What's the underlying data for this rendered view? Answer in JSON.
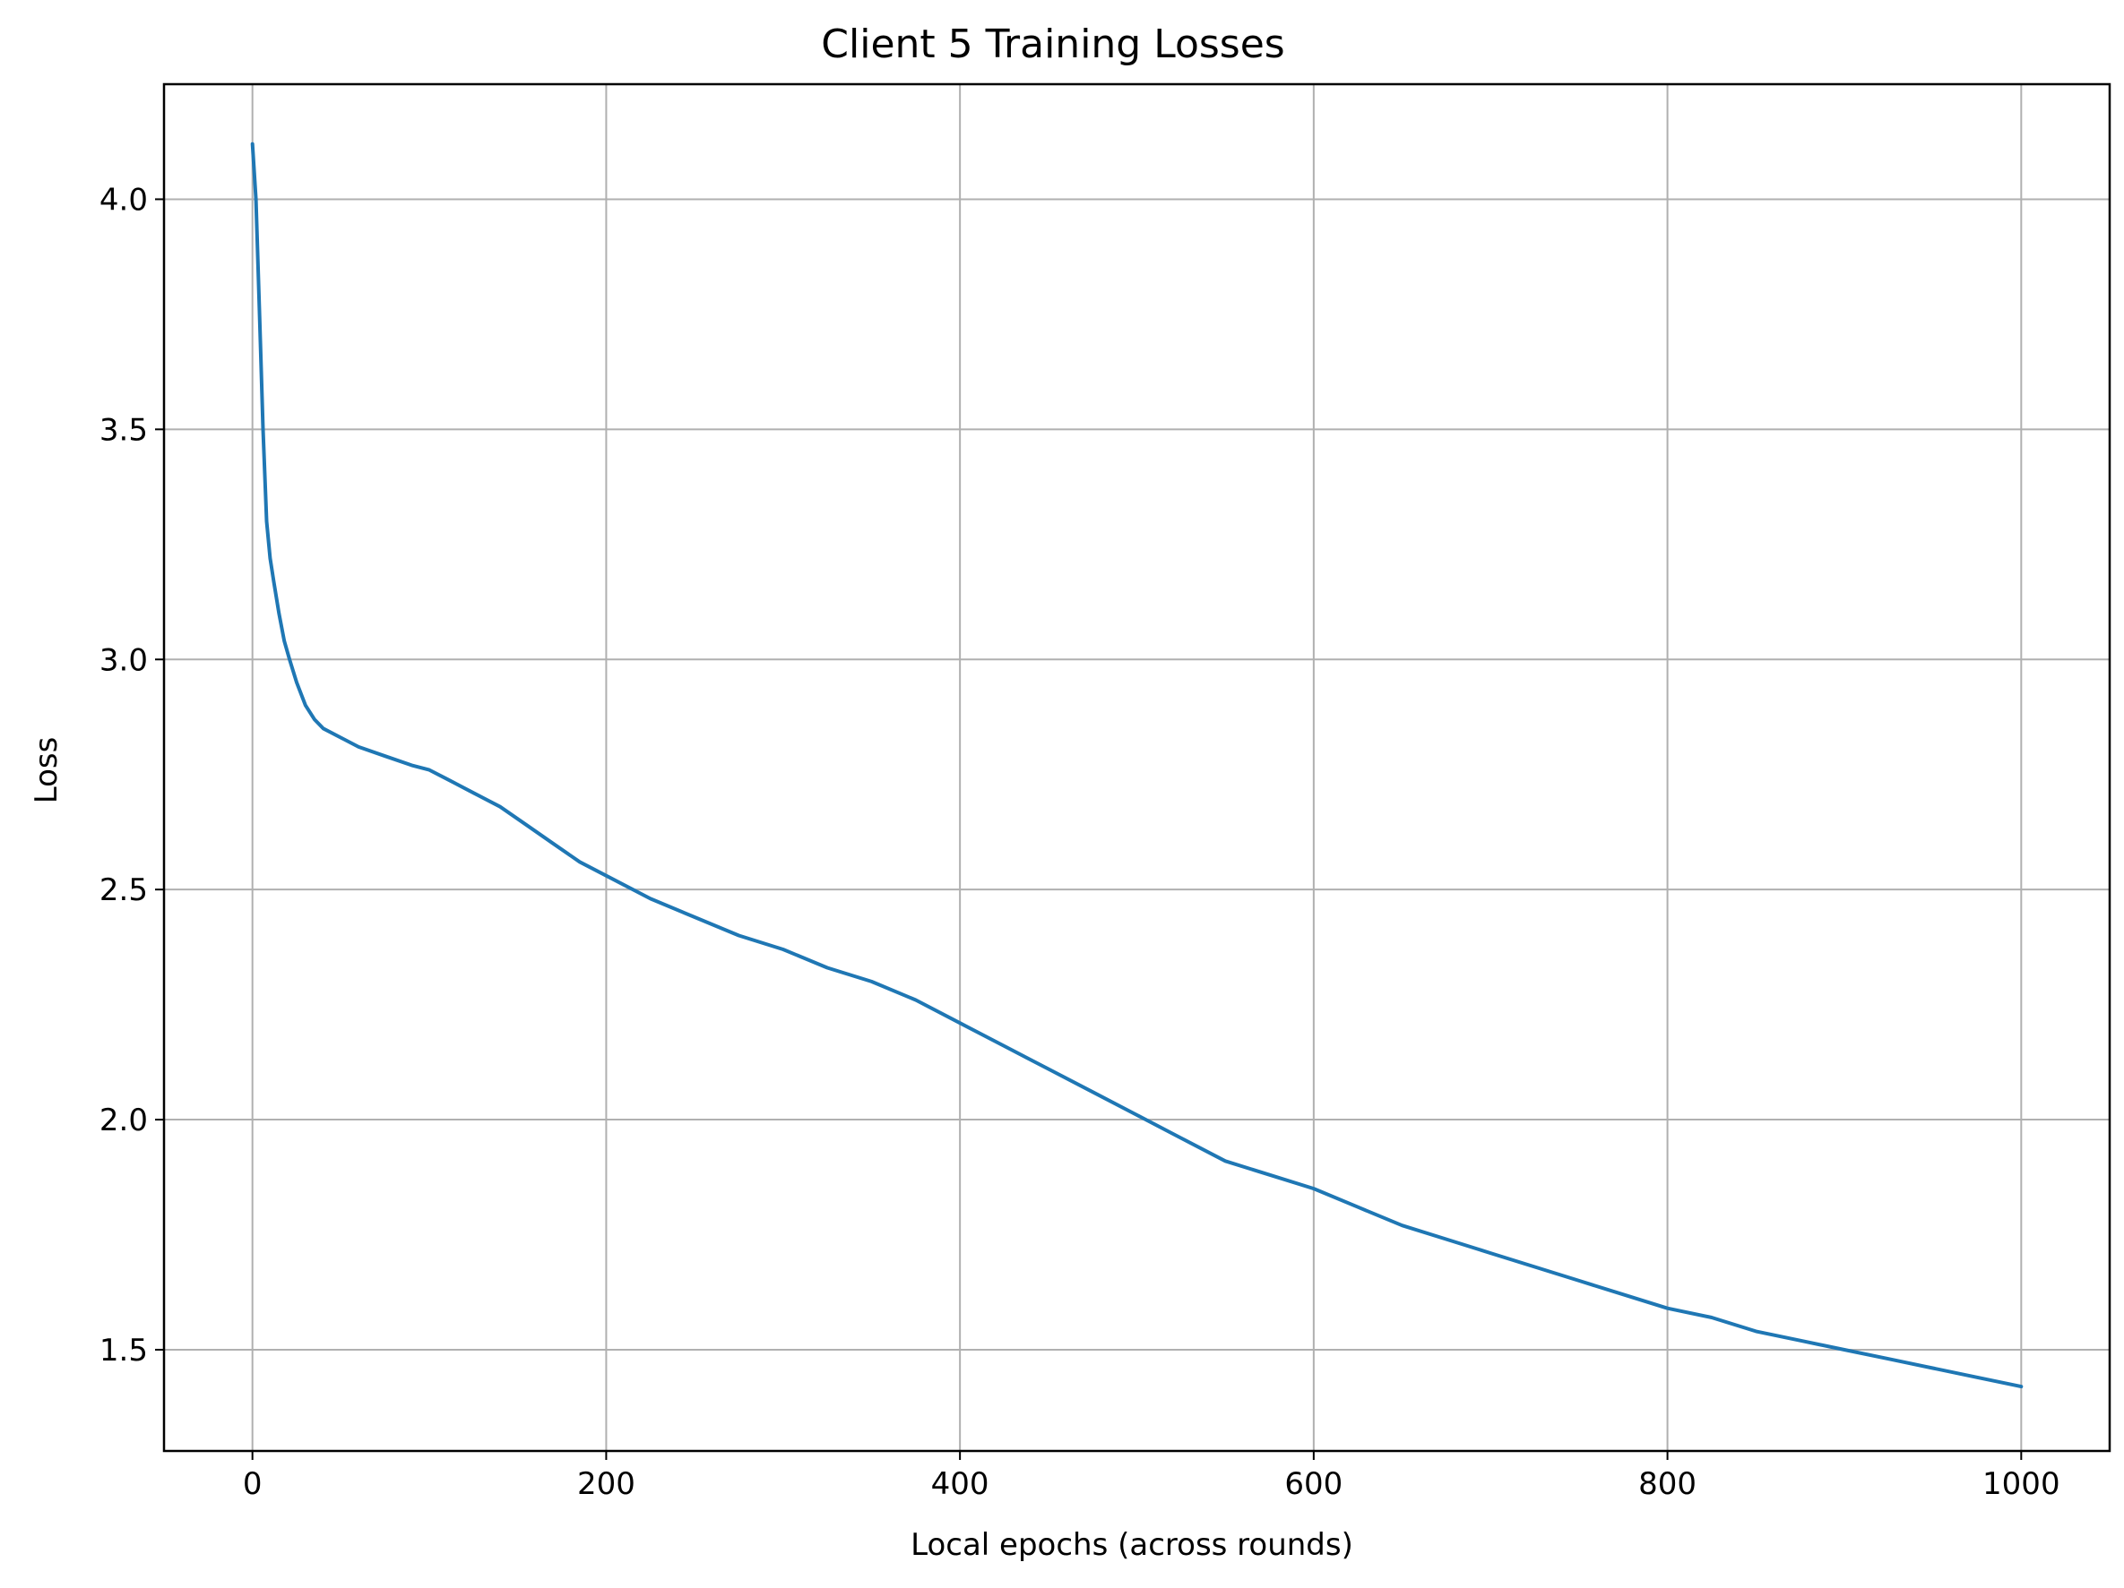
{
  "chart_data": {
    "type": "line",
    "title": "Client 5 Training Losses",
    "xlabel": "Local epochs (across rounds)",
    "ylabel": "Loss",
    "xlim": [
      -50,
      1050
    ],
    "ylim": [
      1.28,
      4.25
    ],
    "xticks": [
      0,
      200,
      400,
      600,
      800,
      1000
    ],
    "xtick_labels": [
      "0",
      "200",
      "400",
      "600",
      "800",
      "1000"
    ],
    "yticks": [
      1.5,
      2.0,
      2.5,
      3.0,
      3.5,
      4.0
    ],
    "ytick_labels": [
      "1.5",
      "2.0",
      "2.5",
      "3.0",
      "3.5",
      "4.0"
    ],
    "grid": true,
    "series": [
      {
        "color": "#1f77b4",
        "x": [
          0,
          2,
          4,
          6,
          8,
          10,
          12,
          15,
          18,
          21,
          25,
          30,
          35,
          40,
          50,
          60,
          75,
          90,
          100,
          110,
          125,
          140,
          155,
          170,
          185,
          200,
          225,
          250,
          275,
          300,
          325,
          350,
          375,
          400,
          425,
          450,
          475,
          500,
          525,
          550,
          575,
          600,
          625,
          650,
          675,
          700,
          725,
          750,
          775,
          800,
          825,
          850,
          875,
          900,
          925,
          950,
          975,
          1000
        ],
        "y": [
          4.12,
          4.0,
          3.75,
          3.5,
          3.3,
          3.22,
          3.17,
          3.1,
          3.04,
          3.0,
          2.95,
          2.9,
          2.87,
          2.85,
          2.83,
          2.81,
          2.79,
          2.77,
          2.76,
          2.74,
          2.71,
          2.68,
          2.64,
          2.6,
          2.56,
          2.53,
          2.48,
          2.44,
          2.4,
          2.37,
          2.33,
          2.3,
          2.26,
          2.21,
          2.16,
          2.11,
          2.06,
          2.01,
          1.96,
          1.91,
          1.88,
          1.85,
          1.81,
          1.77,
          1.74,
          1.71,
          1.68,
          1.65,
          1.62,
          1.59,
          1.57,
          1.54,
          1.52,
          1.5,
          1.48,
          1.46,
          1.44,
          1.42
        ]
      }
    ]
  }
}
